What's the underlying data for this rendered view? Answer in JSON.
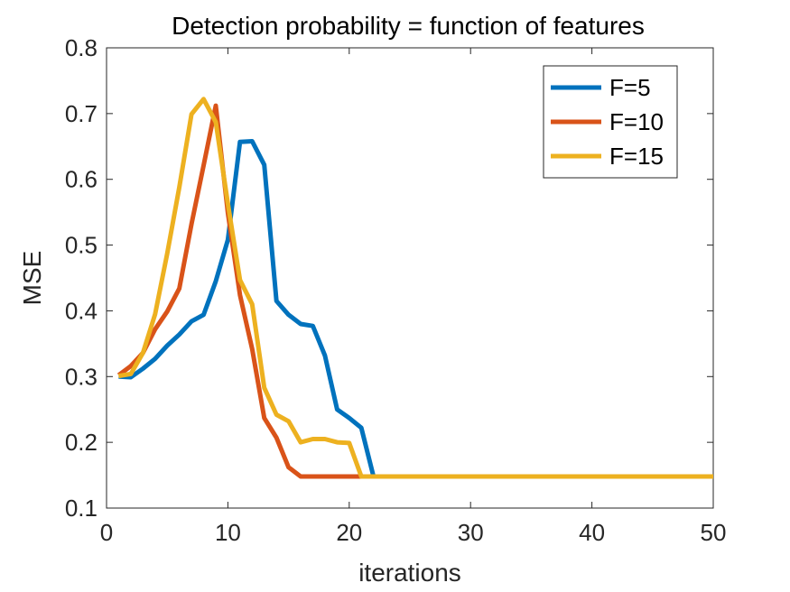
{
  "chart_data": {
    "type": "line",
    "title": "Detection probability = function of features",
    "xlabel": "iterations",
    "ylabel": "MSE",
    "xlim": [
      0,
      50
    ],
    "ylim": [
      0.1,
      0.8
    ],
    "xticks": [
      0,
      10,
      20,
      30,
      40,
      50
    ],
    "xtick_labels": [
      "0",
      "10",
      "20",
      "30",
      "40",
      "50"
    ],
    "yticks": [
      0.1,
      0.2,
      0.3,
      0.4,
      0.5,
      0.6,
      0.7,
      0.8
    ],
    "ytick_labels": [
      "0.1",
      "0.2",
      "0.3",
      "0.4",
      "0.5",
      "0.6",
      "0.7",
      "0.8"
    ],
    "grid": false,
    "legend_position": "top-right",
    "series": [
      {
        "name": "F=5",
        "color": "#0072BD",
        "x": [
          1,
          2,
          3,
          4,
          5,
          6,
          7,
          8,
          9,
          10,
          11,
          12,
          13,
          14,
          15,
          16,
          17,
          18,
          19,
          20,
          21,
          22,
          23,
          50
        ],
        "y": [
          0.3,
          0.299,
          0.312,
          0.327,
          0.347,
          0.364,
          0.384,
          0.394,
          0.445,
          0.508,
          0.657,
          0.658,
          0.622,
          0.415,
          0.394,
          0.38,
          0.377,
          0.332,
          0.25,
          0.237,
          0.222,
          0.148,
          0.148,
          0.148
        ]
      },
      {
        "name": "F=10",
        "color": "#D95319",
        "x": [
          1,
          2,
          3,
          4,
          5,
          6,
          7,
          8,
          9,
          10,
          11,
          12,
          13,
          14,
          15,
          16,
          17,
          18,
          19,
          20,
          21,
          50
        ],
        "y": [
          0.302,
          0.316,
          0.336,
          0.372,
          0.399,
          0.434,
          0.532,
          0.621,
          0.712,
          0.549,
          0.424,
          0.342,
          0.237,
          0.207,
          0.162,
          0.148,
          0.148,
          0.148,
          0.148,
          0.148,
          0.148,
          0.148
        ]
      },
      {
        "name": "F=15",
        "color": "#EDB120",
        "x": [
          1,
          2,
          3,
          4,
          5,
          6,
          7,
          8,
          9,
          10,
          11,
          12,
          13,
          14,
          15,
          16,
          17,
          18,
          19,
          20,
          21,
          50
        ],
        "y": [
          0.301,
          0.304,
          0.336,
          0.395,
          0.487,
          0.588,
          0.699,
          0.722,
          0.687,
          0.563,
          0.447,
          0.41,
          0.283,
          0.242,
          0.232,
          0.2,
          0.205,
          0.205,
          0.2,
          0.199,
          0.148,
          0.148
        ]
      }
    ]
  }
}
